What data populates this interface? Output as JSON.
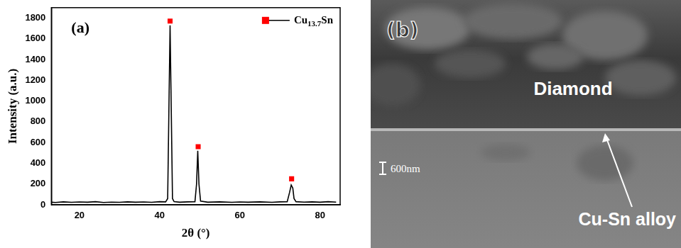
{
  "chart_data": {
    "type": "line",
    "title": "(a)",
    "x_label": "2θ (°)",
    "y_label": "Intensity (a.u.)",
    "xlim": [
      13,
      85
    ],
    "xticks": [
      20,
      40,
      60,
      80
    ],
    "ylim": [
      0,
      1900
    ],
    "yticks": [
      0,
      200,
      400,
      600,
      800,
      1000,
      1200,
      1400,
      1600,
      1800
    ],
    "grid": false,
    "legend": "upper right",
    "series": [
      {
        "color": "#000000",
        "marker": "none",
        "line_style": "solid",
        "x": [
          13,
          14,
          16,
          18,
          20,
          22,
          24,
          26,
          28,
          30,
          32,
          34,
          36,
          38,
          40,
          41.5,
          42,
          42.3,
          42.6,
          42.9,
          43.2,
          43.6,
          45,
          47,
          48.8,
          49.2,
          49.5,
          49.8,
          50.2,
          52,
          55,
          58,
          60,
          62,
          65,
          68,
          70,
          71.8,
          72.4,
          72.8,
          73.2,
          73.5,
          74,
          76,
          78,
          80,
          82,
          84
        ],
        "values": [
          25,
          22,
          28,
          24,
          27,
          25,
          30,
          22,
          26,
          24,
          28,
          25,
          27,
          24,
          30,
          28,
          60,
          900,
          1730,
          900,
          60,
          30,
          25,
          28,
          30,
          200,
          520,
          200,
          35,
          25,
          28,
          24,
          27,
          25,
          28,
          24,
          28,
          30,
          120,
          190,
          160,
          60,
          30,
          26,
          28,
          25,
          30,
          26
        ]
      },
      {
        "name": "Cu13.7Sn",
        "color": "#ff0000",
        "marker": "square",
        "line_style": "none",
        "x": [
          42.6,
          49.6,
          72.9
        ],
        "values": [
          1770,
          560,
          250
        ]
      }
    ]
  },
  "micrograph": {
    "panel": "(b)",
    "labels": [
      "Diamond",
      "Cu-Sn alloy"
    ],
    "scale_bar": "600nm"
  }
}
